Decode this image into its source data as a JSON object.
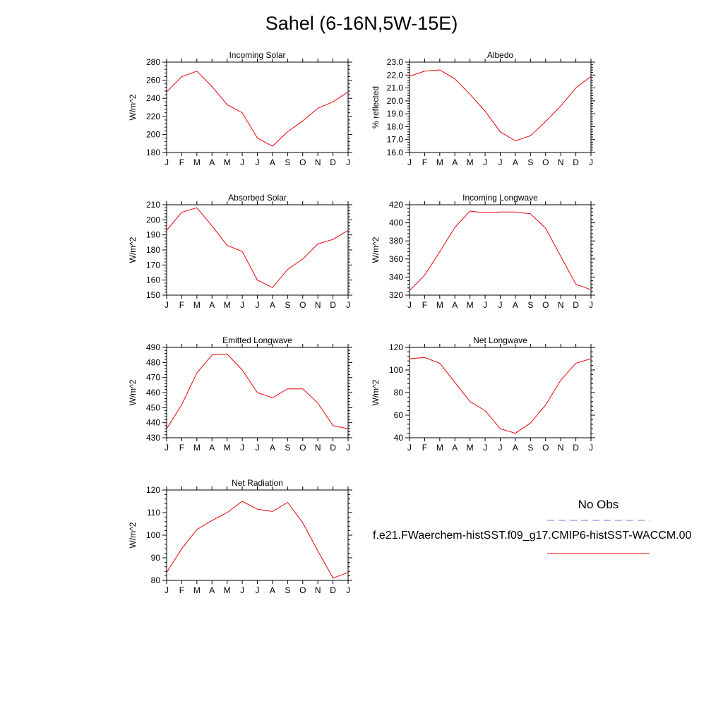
{
  "title": "Sahel (6-16N,5W-15E)",
  "months": [
    "J",
    "F",
    "M",
    "A",
    "M",
    "J",
    "J",
    "A",
    "S",
    "O",
    "N",
    "D",
    "J"
  ],
  "colors": {
    "model": "#e8000b",
    "obs": "#7777dd",
    "axis": "#000000"
  },
  "legend": {
    "obs_label": "No Obs",
    "model_label": "f.e21.FWaerchem-histSST.f09_g17.CMIP6-histSST-WACCM.00"
  },
  "chart_data": [
    {
      "type": "line",
      "title": "Incoming Solar",
      "ylabel": "W/m^2",
      "ylim": [
        180,
        280
      ],
      "yticks": [
        180,
        200,
        220,
        240,
        260,
        280
      ],
      "ytick_labels": [
        "180",
        "200",
        "220",
        "240",
        "260",
        "280"
      ],
      "series": [
        {
          "values": [
            247,
            264,
            270,
            253,
            233,
            224,
            196,
            187,
            203,
            215,
            229,
            236,
            247
          ]
        }
      ]
    },
    {
      "type": "line",
      "title": "Albedo",
      "ylabel": "% reflected",
      "ylim": [
        16,
        23
      ],
      "yticks": [
        16,
        17,
        18,
        19,
        20,
        21,
        22,
        23
      ],
      "ytick_labels": [
        "16.0",
        "17.0",
        "18.0",
        "19.0",
        "20.0",
        "21.0",
        "22.0",
        "23.0"
      ],
      "series": [
        {
          "values": [
            21.9,
            22.3,
            22.4,
            21.7,
            20.5,
            19.2,
            17.6,
            16.9,
            17.3,
            18.4,
            19.6,
            21.0,
            21.9
          ]
        }
      ]
    },
    {
      "type": "line",
      "title": "Absorbed Solar",
      "ylabel": "W/m^2",
      "ylim": [
        150,
        210
      ],
      "yticks": [
        150,
        160,
        170,
        180,
        190,
        200,
        210
      ],
      "ytick_labels": [
        "150",
        "160",
        "170",
        "180",
        "190",
        "200",
        "210"
      ],
      "series": [
        {
          "values": [
            193,
            205,
            208,
            196,
            183,
            179,
            160,
            155,
            167,
            174,
            184,
            187,
            193
          ]
        }
      ]
    },
    {
      "type": "line",
      "title": "Incoming Longwave",
      "ylabel": "W/m^2",
      "ylim": [
        320,
        420
      ],
      "yticks": [
        320,
        340,
        360,
        380,
        400,
        420
      ],
      "ytick_labels": [
        "320",
        "340",
        "360",
        "380",
        "400",
        "420"
      ],
      "series": [
        {
          "values": [
            325,
            342,
            368,
            395,
            413,
            411,
            412,
            412,
            410,
            394,
            363,
            332,
            326
          ]
        }
      ]
    },
    {
      "type": "line",
      "title": "Emitted Longwave",
      "ylabel": "W/m^2",
      "ylim": [
        430,
        490
      ],
      "yticks": [
        430,
        440,
        450,
        460,
        470,
        480,
        490
      ],
      "ytick_labels": [
        "430",
        "440",
        "450",
        "460",
        "470",
        "480",
        "490"
      ],
      "series": [
        {
          "values": [
            436,
            452,
            473,
            485,
            485.5,
            475,
            460,
            456.5,
            462.5,
            462.5,
            453,
            438,
            436
          ]
        }
      ]
    },
    {
      "type": "line",
      "title": "Net Longwave",
      "ylabel": "W/m^2",
      "ylim": [
        40,
        120
      ],
      "yticks": [
        40,
        60,
        80,
        100,
        120
      ],
      "ytick_labels": [
        "40",
        "60",
        "80",
        "100",
        "120"
      ],
      "series": [
        {
          "values": [
            110,
            111,
            106,
            89,
            72,
            64,
            48,
            44,
            53,
            69,
            91,
            106,
            110
          ]
        }
      ]
    },
    {
      "type": "line",
      "title": "Net Radiation",
      "ylabel": "W/m^2",
      "ylim": [
        80,
        120
      ],
      "yticks": [
        80,
        90,
        100,
        110,
        120
      ],
      "ytick_labels": [
        "80",
        "90",
        "100",
        "110",
        "120"
      ],
      "series": [
        {
          "values": [
            83.5,
            94,
            102.5,
            106.5,
            110,
            115,
            111.5,
            110.5,
            114.5,
            105.5,
            93,
            81,
            83.5
          ]
        }
      ]
    }
  ]
}
